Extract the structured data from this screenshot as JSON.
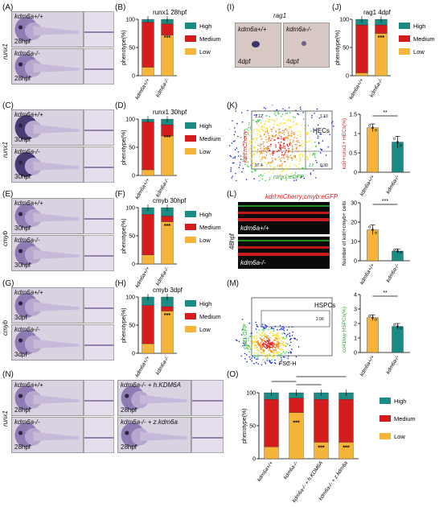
{
  "panels": {
    "A": "(A)",
    "B": "(B)",
    "C": "(C)",
    "D": "(D)",
    "E": "(E)",
    "F": "(F)",
    "G": "(G)",
    "H": "(H)",
    "I": "(I)",
    "J": "(J)",
    "K": "(K)",
    "L": "(L)",
    "M": "(M)",
    "N": "(N)",
    "O": "(O)"
  },
  "genes": {
    "runx1": "runx1",
    "cmyb": "cmyb",
    "rag1": "rag1"
  },
  "genotypes": {
    "wt": "kdm6a+/+",
    "ko": "kdm6a-/-",
    "ko_h": "kdm6a-/- + h.KDM6A",
    "ko_z": "kdm6a-/- + z.kdm6a"
  },
  "stages": {
    "s28": "28hpf",
    "s30": "30hpf",
    "s3d": "3dpf",
    "s4d": "4dpf",
    "s48": "48hpf"
  },
  "legend": {
    "high": "High",
    "medium": "Medium",
    "low": "Low"
  },
  "colors": {
    "high": "#1b8b83",
    "medium": "#d41c1c",
    "low": "#f5b53a"
  },
  "ylabel_pheno": "phenotype(%)",
  "sig": "***",
  "sig2": "**",
  "flow": {
    "k_q1": "1.12",
    "k_q2": "1.10",
    "k_q3": "97.4",
    "k_q4": "0.30",
    "k_gate": "HECs",
    "k_y": "kdrl:mCherry",
    "k_x": "runx1:eGFP",
    "m_gate": "HSPCs",
    "m_val": "2.06",
    "m_y": "cd41:GFP",
    "m_x": "FSC-H"
  },
  "l_title": "kdrl:mCherry;cmyb:eGFP",
  "k_ylabel": "kdrl+runx1+ HECs(%)",
  "l_ylabel": "Number of kdrl+cmyb+ cells",
  "m_ylabel": "cd41low HSPCs(%)",
  "chart_data": [
    {
      "id": "B",
      "type": "bar",
      "title": "runx1 28hpf",
      "categories": [
        "kdm6a+/+",
        "kdm6a-/-"
      ],
      "series": [
        {
          "name": "High",
          "values": [
            5,
            8
          ]
        },
        {
          "name": "Medium",
          "values": [
            80,
            20
          ]
        },
        {
          "name": "Low",
          "values": [
            15,
            72
          ]
        }
      ],
      "ylim": [
        0,
        100
      ],
      "yticks": [
        0,
        50,
        100
      ],
      "ylabel": "phenotype(%)"
    },
    {
      "id": "D",
      "type": "bar",
      "title": "runx1 30hpf",
      "categories": [
        "kdm6a+/+",
        "kdm6a-/-"
      ],
      "series": [
        {
          "name": "High",
          "values": [
            5,
            10
          ]
        },
        {
          "name": "Medium",
          "values": [
            85,
            20
          ]
        },
        {
          "name": "Low",
          "values": [
            10,
            70
          ]
        }
      ],
      "ylim": [
        0,
        100
      ],
      "yticks": [
        0,
        50,
        100
      ],
      "ylabel": "phenotype(%)"
    },
    {
      "id": "F",
      "type": "bar",
      "title": "cmyb 30hpf",
      "categories": [
        "kdm6a+/+",
        "kdm6a-/-"
      ],
      "series": [
        {
          "name": "High",
          "values": [
            12,
            15
          ]
        },
        {
          "name": "Medium",
          "values": [
            72,
            10
          ]
        },
        {
          "name": "Low",
          "values": [
            16,
            75
          ]
        }
      ],
      "ylim": [
        0,
        100
      ],
      "yticks": [
        0,
        50,
        100
      ],
      "ylabel": "phenotype(%)"
    },
    {
      "id": "H",
      "type": "bar",
      "title": "cmyb 3dpf",
      "categories": [
        "kdm6a+/+",
        "kdm6a-/-"
      ],
      "series": [
        {
          "name": "High",
          "values": [
            15,
            17
          ]
        },
        {
          "name": "Medium",
          "values": [
            68,
            8
          ]
        },
        {
          "name": "Low",
          "values": [
            17,
            75
          ]
        }
      ],
      "ylim": [
        0,
        100
      ],
      "yticks": [
        0,
        50,
        100
      ],
      "ylabel": "phenotype(%)"
    },
    {
      "id": "J",
      "type": "bar",
      "title": "rag1 4dpf",
      "categories": [
        "kdm6a+/+",
        "kdm6a-/-"
      ],
      "series": [
        {
          "name": "High",
          "values": [
            10,
            10
          ]
        },
        {
          "name": "Medium",
          "values": [
            85,
            15
          ]
        },
        {
          "name": "Low",
          "values": [
            5,
            75
          ]
        }
      ],
      "ylim": [
        0,
        100
      ],
      "yticks": [
        0,
        50,
        100
      ],
      "ylabel": "phenotype(%)"
    },
    {
      "id": "K",
      "type": "bar",
      "categories": [
        "kdm6a+/+",
        "kdm6a-/-"
      ],
      "values": [
        1.15,
        0.78
      ],
      "errors": [
        0.1,
        0.15
      ],
      "ylim": [
        0,
        1.5
      ],
      "yticks": [
        0.0,
        0.5,
        1.0,
        1.5
      ],
      "ylabel": "kdrl+runx1+ HECs(%)"
    },
    {
      "id": "L",
      "type": "bar",
      "categories": [
        "kdm6a+/+",
        "kdm6a-/-"
      ],
      "values": [
        16,
        5
      ],
      "errors": [
        2.5,
        1
      ],
      "ylim": [
        0,
        30
      ],
      "yticks": [
        0,
        10,
        20,
        30
      ],
      "ylabel": "Number of kdrl+cmyb+ cells"
    },
    {
      "id": "M",
      "type": "bar",
      "categories": [
        "kdm6a+/+",
        "kdm6a-/-"
      ],
      "values": [
        2.4,
        1.8
      ],
      "errors": [
        0.2,
        0.2
      ],
      "ylim": [
        0,
        4
      ],
      "yticks": [
        0,
        1,
        2,
        3,
        4
      ],
      "ylabel": "cd41low HSPCs(%)"
    },
    {
      "id": "O",
      "type": "bar",
      "categories": [
        "kdm6a+/+",
        "kdm6a-/-",
        "kdm6a-/- + h.KDM6A",
        "kdm6a-/- + z.kdm6a"
      ],
      "series": [
        {
          "name": "High",
          "values": [
            10,
            8,
            10,
            10
          ]
        },
        {
          "name": "Medium",
          "values": [
            72,
            22,
            65,
            65
          ]
        },
        {
          "name": "Low",
          "values": [
            18,
            70,
            25,
            25
          ]
        }
      ],
      "ylim": [
        0,
        100
      ],
      "yticks": [
        0,
        50,
        100
      ],
      "ylabel": "phenotype(%)"
    }
  ]
}
